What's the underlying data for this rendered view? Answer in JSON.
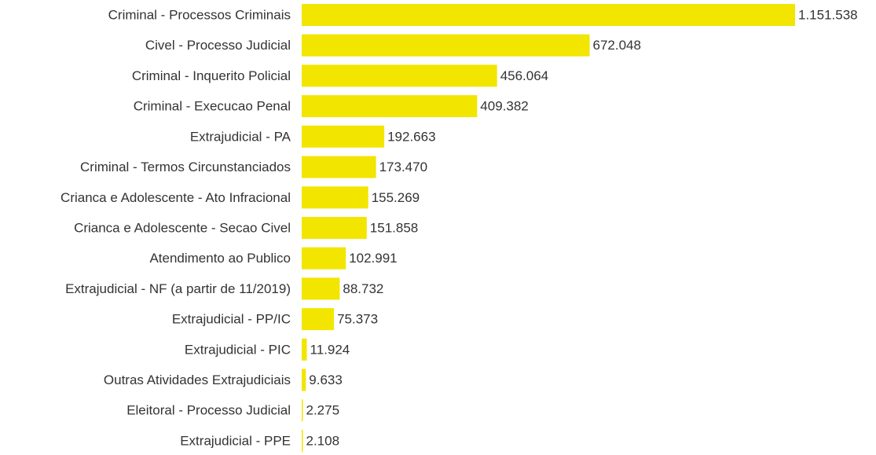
{
  "chart_data": {
    "type": "bar",
    "orientation": "horizontal",
    "title": "",
    "xlabel": "",
    "ylabel": "",
    "bar_color": "#f2e500",
    "label_color": "#333333",
    "grid": false,
    "legend": "none",
    "categories": [
      "Criminal - Processos Criminais",
      "Civel - Processo Judicial",
      "Criminal - Inquerito Policial",
      "Criminal - Execucao Penal",
      "Extrajudicial - PA",
      "Criminal - Termos Circunstanciados",
      "Crianca e Adolescente - Ato Infracional",
      "Crianca e Adolescente - Secao Civel",
      "Atendimento ao Publico",
      "Extrajudicial - NF (a partir de 11/2019)",
      "Extrajudicial - PP/IC",
      "Extrajudicial - PIC",
      "Outras Atividades Extrajudiciais",
      "Eleitoral - Processo Judicial",
      "Extrajudicial - PPE"
    ],
    "values": [
      1151538,
      672048,
      456064,
      409382,
      192663,
      173470,
      155269,
      151858,
      102991,
      88732,
      75373,
      11924,
      9633,
      2275,
      2108
    ],
    "value_labels": [
      "1.151.538",
      "672.048",
      "456.064",
      "409.382",
      "192.663",
      "173.470",
      "155.269",
      "151.858",
      "102.991",
      "88.732",
      "75.373",
      "11.924",
      "9.633",
      "2.275",
      "2.108"
    ],
    "xlim": [
      0,
      1151538
    ]
  }
}
